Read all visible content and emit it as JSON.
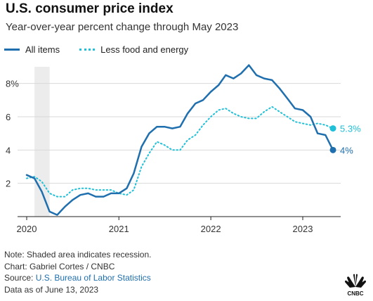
{
  "chart_data": {
    "type": "line",
    "title": "U.S. consumer price index",
    "subtitle": "Year-over-year percent change through May 2023",
    "xlabel": "",
    "ylabel": "",
    "x_ticks": [
      "2020",
      "2021",
      "2022",
      "2023"
    ],
    "y_ticks": [
      "2",
      "4",
      "6",
      "8%"
    ],
    "ylim": [
      0,
      9
    ],
    "grid": "horizontal",
    "legend_position": "top-left",
    "recession_note": "Shaded area indicates recession.",
    "recession_period": [
      "2020-02",
      "2020-04"
    ],
    "series": [
      {
        "name": "All items",
        "color": "#1f6fae",
        "style": "solid",
        "end_label": "4%",
        "points": [
          [
            "2020-01",
            2.5
          ],
          [
            "2020-02",
            2.3
          ],
          [
            "2020-03",
            1.5
          ],
          [
            "2020-04",
            0.3
          ],
          [
            "2020-05",
            0.1
          ],
          [
            "2020-06",
            0.6
          ],
          [
            "2020-07",
            1.0
          ],
          [
            "2020-08",
            1.3
          ],
          [
            "2020-09",
            1.4
          ],
          [
            "2020-10",
            1.2
          ],
          [
            "2020-11",
            1.2
          ],
          [
            "2020-12",
            1.4
          ],
          [
            "2021-01",
            1.4
          ],
          [
            "2021-02",
            1.7
          ],
          [
            "2021-03",
            2.6
          ],
          [
            "2021-04",
            4.2
          ],
          [
            "2021-05",
            5.0
          ],
          [
            "2021-06",
            5.4
          ],
          [
            "2021-07",
            5.4
          ],
          [
            "2021-08",
            5.3
          ],
          [
            "2021-09",
            5.4
          ],
          [
            "2021-10",
            6.2
          ],
          [
            "2021-11",
            6.8
          ],
          [
            "2021-12",
            7.0
          ],
          [
            "2022-01",
            7.5
          ],
          [
            "2022-02",
            7.9
          ],
          [
            "2022-03",
            8.5
          ],
          [
            "2022-04",
            8.3
          ],
          [
            "2022-05",
            8.6
          ],
          [
            "2022-06",
            9.1
          ],
          [
            "2022-07",
            8.5
          ],
          [
            "2022-08",
            8.3
          ],
          [
            "2022-09",
            8.2
          ],
          [
            "2022-10",
            7.7
          ],
          [
            "2022-11",
            7.1
          ],
          [
            "2022-12",
            6.5
          ],
          [
            "2023-01",
            6.4
          ],
          [
            "2023-02",
            6.0
          ],
          [
            "2023-03",
            5.0
          ],
          [
            "2023-04",
            4.9
          ],
          [
            "2023-05",
            4.0
          ]
        ]
      },
      {
        "name": "Less food and energy",
        "color": "#20c0d8",
        "style": "dotted",
        "end_label": "5.3%",
        "points": [
          [
            "2020-01",
            2.3
          ],
          [
            "2020-02",
            2.4
          ],
          [
            "2020-03",
            2.1
          ],
          [
            "2020-04",
            1.4
          ],
          [
            "2020-05",
            1.2
          ],
          [
            "2020-06",
            1.2
          ],
          [
            "2020-07",
            1.6
          ],
          [
            "2020-08",
            1.7
          ],
          [
            "2020-09",
            1.7
          ],
          [
            "2020-10",
            1.6
          ],
          [
            "2020-11",
            1.6
          ],
          [
            "2020-12",
            1.6
          ],
          [
            "2021-01",
            1.4
          ],
          [
            "2021-02",
            1.3
          ],
          [
            "2021-03",
            1.6
          ],
          [
            "2021-04",
            3.0
          ],
          [
            "2021-05",
            3.8
          ],
          [
            "2021-06",
            4.5
          ],
          [
            "2021-07",
            4.3
          ],
          [
            "2021-08",
            4.0
          ],
          [
            "2021-09",
            4.0
          ],
          [
            "2021-10",
            4.6
          ],
          [
            "2021-11",
            4.9
          ],
          [
            "2021-12",
            5.5
          ],
          [
            "2022-01",
            6.0
          ],
          [
            "2022-02",
            6.4
          ],
          [
            "2022-03",
            6.5
          ],
          [
            "2022-04",
            6.2
          ],
          [
            "2022-05",
            6.0
          ],
          [
            "2022-06",
            5.9
          ],
          [
            "2022-07",
            5.9
          ],
          [
            "2022-08",
            6.3
          ],
          [
            "2022-09",
            6.6
          ],
          [
            "2022-10",
            6.3
          ],
          [
            "2022-11",
            6.0
          ],
          [
            "2022-12",
            5.7
          ],
          [
            "2023-01",
            5.6
          ],
          [
            "2023-02",
            5.5
          ],
          [
            "2023-03",
            5.6
          ],
          [
            "2023-04",
            5.5
          ],
          [
            "2023-05",
            5.3
          ]
        ]
      }
    ]
  },
  "footer": {
    "note": "Note: Shaded area indicates recession.",
    "chart_credit": "Chart: Gabriel Cortes / CNBC",
    "source_label": "Source:",
    "source_link": "U.S. Bureau of Labor Statistics",
    "data_as_of": "Data as of June 13, 2023"
  },
  "logo": {
    "icon": "nbc-peacock-icon",
    "text": "CNBC"
  }
}
